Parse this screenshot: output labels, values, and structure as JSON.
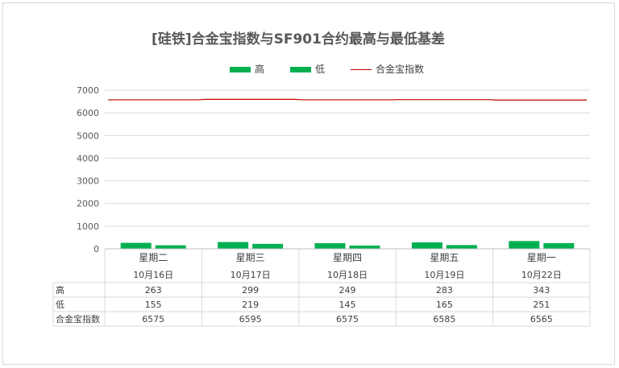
{
  "chart_data": {
    "type": "bar",
    "title": "[硅铁]合金宝指数与SF901合约最高与最低基差",
    "categories": [
      {
        "weekday": "星期二",
        "date": "10月16日"
      },
      {
        "weekday": "星期三",
        "date": "10月17日"
      },
      {
        "weekday": "星期四",
        "date": "10月18日"
      },
      {
        "weekday": "星期五",
        "date": "10月19日"
      },
      {
        "weekday": "星期一",
        "date": "10月22日"
      }
    ],
    "series": [
      {
        "name": "高",
        "type": "bar",
        "color": "#00b050",
        "values": [
          263,
          299,
          249,
          283,
          343
        ]
      },
      {
        "name": "低",
        "type": "bar",
        "color": "#00b050",
        "values": [
          155,
          219,
          145,
          165,
          251
        ]
      },
      {
        "name": "合金宝指数",
        "type": "line",
        "color": "#c00000",
        "values": [
          6575,
          6595,
          6575,
          6585,
          6565
        ]
      }
    ],
    "yticks": [
      "0",
      "1000",
      "2000",
      "3000",
      "4000",
      "5000",
      "6000",
      "7000"
    ],
    "ylim": [
      0,
      7000
    ],
    "grid": true,
    "legend_position": "top",
    "data_table": true
  }
}
